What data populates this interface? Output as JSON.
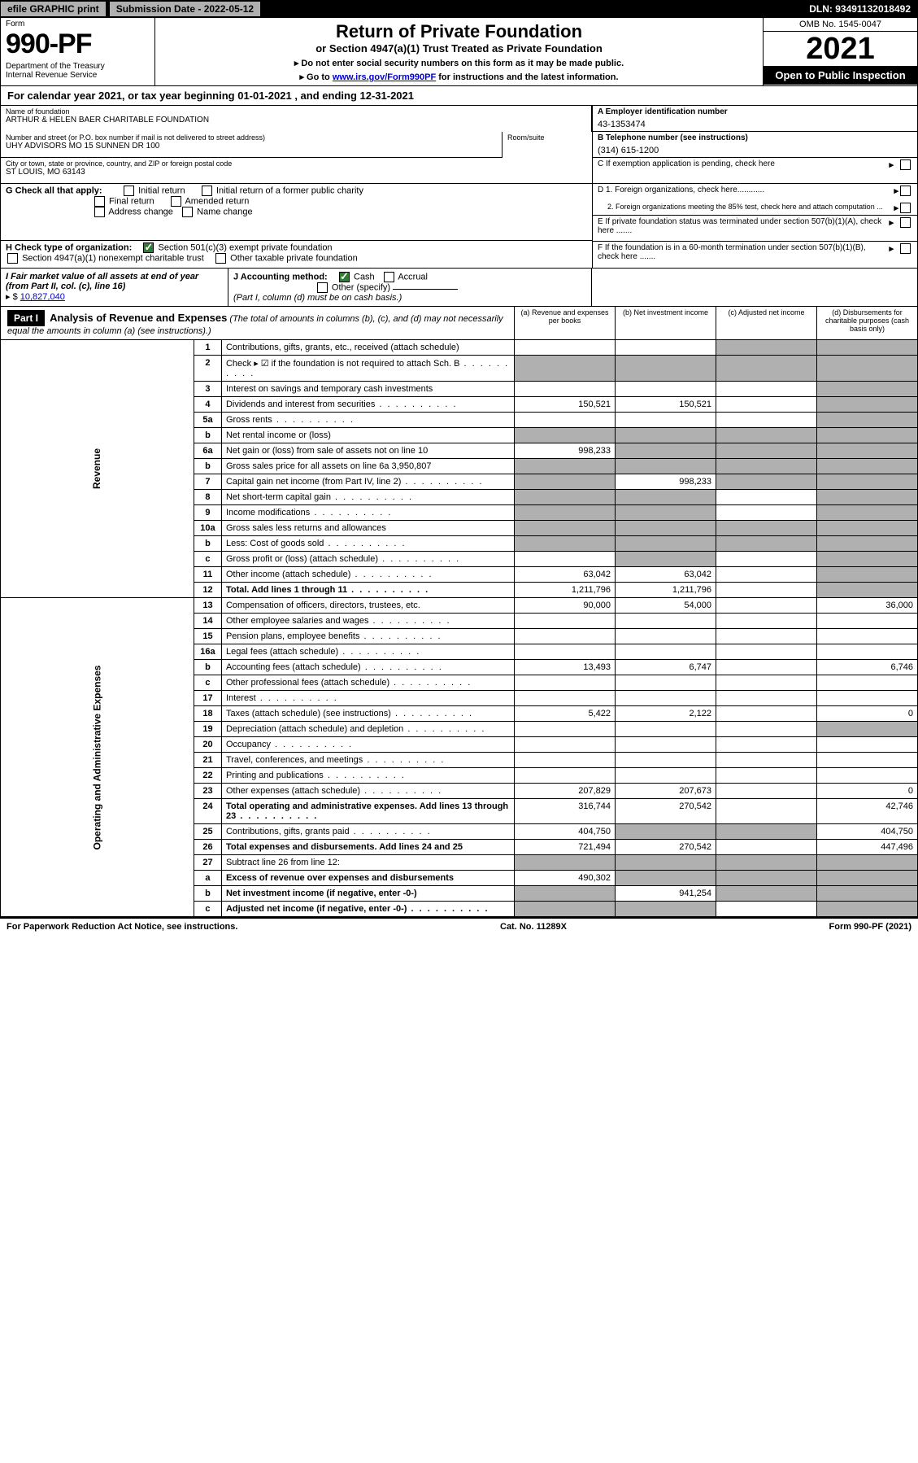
{
  "top": {
    "efile": "efile GRAPHIC print",
    "submission": "Submission Date - 2022-05-12",
    "dln": "DLN: 93491132018492"
  },
  "header": {
    "form_label": "Form",
    "form_num": "990-PF",
    "dept": "Department of the Treasury\nInternal Revenue Service",
    "title": "Return of Private Foundation",
    "subtitle": "or Section 4947(a)(1) Trust Treated as Private Foundation",
    "note1": "▸ Do not enter social security numbers on this form as it may be made public.",
    "note2_pre": "▸ Go to ",
    "note2_link": "www.irs.gov/Form990PF",
    "note2_post": " for instructions and the latest information.",
    "omb": "OMB No. 1545-0047",
    "year": "2021",
    "open": "Open to Public Inspection"
  },
  "calyear": "For calendar year 2021, or tax year beginning 01-01-2021             , and ending 12-31-2021",
  "info": {
    "name_label": "Name of foundation",
    "name": "ARTHUR & HELEN BAER CHARITABLE FOUNDATION",
    "addr_label": "Number and street (or P.O. box number if mail is not delivered to street address)",
    "addr": "UHY ADVISORS MO 15 SUNNEN DR 100",
    "room_label": "Room/suite",
    "city_label": "City or town, state or province, country, and ZIP or foreign postal code",
    "city": "ST LOUIS, MO  63143",
    "ein_label": "A Employer identification number",
    "ein": "43-1353474",
    "tel_label": "B Telephone number (see instructions)",
    "tel": "(314) 615-1200",
    "c_label": "C If exemption application is pending, check here",
    "d1": "D 1. Foreign organizations, check here............",
    "d2": "2. Foreign organizations meeting the 85% test, check here and attach computation ...",
    "e_label": "E  If private foundation status was terminated under section 507(b)(1)(A), check here .......",
    "f_label": "F  If the foundation is in a 60-month termination under section 507(b)(1)(B), check here .......",
    "g_label": "G Check all that apply:",
    "g_opts": [
      "Initial return",
      "Initial return of a former public charity",
      "Final return",
      "Amended return",
      "Address change",
      "Name change"
    ],
    "h_label": "H Check type of organization:",
    "h1": "Section 501(c)(3) exempt private foundation",
    "h2": "Section 4947(a)(1) nonexempt charitable trust",
    "h3": "Other taxable private foundation",
    "i_label": "I Fair market value of all assets at end of year (from Part II, col. (c), line 16)",
    "i_val": "10,827,040",
    "j_label": "J Accounting method:",
    "j_cash": "Cash",
    "j_accrual": "Accrual",
    "j_other": "Other (specify)",
    "j_note": "(Part I, column (d) must be on cash basis.)"
  },
  "part1": {
    "label": "Part I",
    "title": "Analysis of Revenue and Expenses",
    "title_note": "(The total of amounts in columns (b), (c), and (d) may not necessarily equal the amounts in column (a) (see instructions).)",
    "col_a": "(a)   Revenue and expenses per books",
    "col_b": "(b)   Net investment income",
    "col_c": "(c)   Adjusted net income",
    "col_d": "(d)   Disbursements for charitable purposes (cash basis only)"
  },
  "side_labels": {
    "revenue": "Revenue",
    "expenses": "Operating and Administrative Expenses"
  },
  "rows": [
    {
      "n": "1",
      "d": "Contributions, gifts, grants, etc., received (attach schedule)",
      "a": "",
      "b": "",
      "c": "grey",
      "dd": "grey"
    },
    {
      "n": "2",
      "d": "Check ▸ ☑ if the foundation is not required to attach Sch. B",
      "a": "grey",
      "b": "grey",
      "c": "grey",
      "dd": "grey",
      "dots": true
    },
    {
      "n": "3",
      "d": "Interest on savings and temporary cash investments",
      "a": "",
      "b": "",
      "c": "",
      "dd": "grey"
    },
    {
      "n": "4",
      "d": "Dividends and interest from securities",
      "a": "150,521",
      "b": "150,521",
      "c": "",
      "dd": "grey",
      "dots": true
    },
    {
      "n": "5a",
      "d": "Gross rents",
      "a": "",
      "b": "",
      "c": "",
      "dd": "grey",
      "dots": true
    },
    {
      "n": "b",
      "d": "Net rental income or (loss)",
      "a": "grey",
      "b": "grey",
      "c": "grey",
      "dd": "grey"
    },
    {
      "n": "6a",
      "d": "Net gain or (loss) from sale of assets not on line 10",
      "a": "998,233",
      "b": "grey",
      "c": "grey",
      "dd": "grey"
    },
    {
      "n": "b",
      "d": "Gross sales price for all assets on line 6a            3,950,807",
      "a": "grey",
      "b": "grey",
      "c": "grey",
      "dd": "grey"
    },
    {
      "n": "7",
      "d": "Capital gain net income (from Part IV, line 2)",
      "a": "grey",
      "b": "998,233",
      "c": "grey",
      "dd": "grey",
      "dots": true
    },
    {
      "n": "8",
      "d": "Net short-term capital gain",
      "a": "grey",
      "b": "grey",
      "c": "",
      "dd": "grey",
      "dots": true
    },
    {
      "n": "9",
      "d": "Income modifications",
      "a": "grey",
      "b": "grey",
      "c": "",
      "dd": "grey",
      "dots": true
    },
    {
      "n": "10a",
      "d": "Gross sales less returns and allowances",
      "a": "grey",
      "b": "grey",
      "c": "grey",
      "dd": "grey"
    },
    {
      "n": "b",
      "d": "Less: Cost of goods sold",
      "a": "grey",
      "b": "grey",
      "c": "grey",
      "dd": "grey",
      "dots": true
    },
    {
      "n": "c",
      "d": "Gross profit or (loss) (attach schedule)",
      "a": "",
      "b": "grey",
      "c": "",
      "dd": "grey",
      "dots": true
    },
    {
      "n": "11",
      "d": "Other income (attach schedule)",
      "a": "63,042",
      "b": "63,042",
      "c": "",
      "dd": "grey",
      "dots": true
    },
    {
      "n": "12",
      "d": "Total. Add lines 1 through 11",
      "a": "1,211,796",
      "b": "1,211,796",
      "c": "",
      "dd": "grey",
      "bold": true,
      "dots": true
    },
    {
      "n": "13",
      "d": "Compensation of officers, directors, trustees, etc.",
      "a": "90,000",
      "b": "54,000",
      "c": "",
      "dd": "36,000"
    },
    {
      "n": "14",
      "d": "Other employee salaries and wages",
      "a": "",
      "b": "",
      "c": "",
      "dd": "",
      "dots": true
    },
    {
      "n": "15",
      "d": "Pension plans, employee benefits",
      "a": "",
      "b": "",
      "c": "",
      "dd": "",
      "dots": true
    },
    {
      "n": "16a",
      "d": "Legal fees (attach schedule)",
      "a": "",
      "b": "",
      "c": "",
      "dd": "",
      "dots": true
    },
    {
      "n": "b",
      "d": "Accounting fees (attach schedule)",
      "a": "13,493",
      "b": "6,747",
      "c": "",
      "dd": "6,746",
      "dots": true
    },
    {
      "n": "c",
      "d": "Other professional fees (attach schedule)",
      "a": "",
      "b": "",
      "c": "",
      "dd": "",
      "dots": true
    },
    {
      "n": "17",
      "d": "Interest",
      "a": "",
      "b": "",
      "c": "",
      "dd": "",
      "dots": true
    },
    {
      "n": "18",
      "d": "Taxes (attach schedule) (see instructions)",
      "a": "5,422",
      "b": "2,122",
      "c": "",
      "dd": "0",
      "dots": true
    },
    {
      "n": "19",
      "d": "Depreciation (attach schedule) and depletion",
      "a": "",
      "b": "",
      "c": "",
      "dd": "grey",
      "dots": true
    },
    {
      "n": "20",
      "d": "Occupancy",
      "a": "",
      "b": "",
      "c": "",
      "dd": "",
      "dots": true
    },
    {
      "n": "21",
      "d": "Travel, conferences, and meetings",
      "a": "",
      "b": "",
      "c": "",
      "dd": "",
      "dots": true
    },
    {
      "n": "22",
      "d": "Printing and publications",
      "a": "",
      "b": "",
      "c": "",
      "dd": "",
      "dots": true
    },
    {
      "n": "23",
      "d": "Other expenses (attach schedule)",
      "a": "207,829",
      "b": "207,673",
      "c": "",
      "dd": "0",
      "dots": true
    },
    {
      "n": "24",
      "d": "Total operating and administrative expenses. Add lines 13 through 23",
      "a": "316,744",
      "b": "270,542",
      "c": "",
      "dd": "42,746",
      "bold": true,
      "dots": true
    },
    {
      "n": "25",
      "d": "Contributions, gifts, grants paid",
      "a": "404,750",
      "b": "grey",
      "c": "grey",
      "dd": "404,750",
      "dots": true
    },
    {
      "n": "26",
      "d": "Total expenses and disbursements. Add lines 24 and 25",
      "a": "721,494",
      "b": "270,542",
      "c": "",
      "dd": "447,496",
      "bold": true
    },
    {
      "n": "27",
      "d": "Subtract line 26 from line 12:",
      "a": "grey",
      "b": "grey",
      "c": "grey",
      "dd": "grey"
    },
    {
      "n": "a",
      "d": "Excess of revenue over expenses and disbursements",
      "a": "490,302",
      "b": "grey",
      "c": "grey",
      "dd": "grey",
      "bold": true
    },
    {
      "n": "b",
      "d": "Net investment income (if negative, enter -0-)",
      "a": "grey",
      "b": "941,254",
      "c": "grey",
      "dd": "grey",
      "bold": true
    },
    {
      "n": "c",
      "d": "Adjusted net income (if negative, enter -0-)",
      "a": "grey",
      "b": "grey",
      "c": "",
      "dd": "grey",
      "bold": true,
      "dots": true
    }
  ],
  "footer": {
    "left": "For Paperwork Reduction Act Notice, see instructions.",
    "mid": "Cat. No. 11289X",
    "right": "Form 990-PF (2021)"
  }
}
